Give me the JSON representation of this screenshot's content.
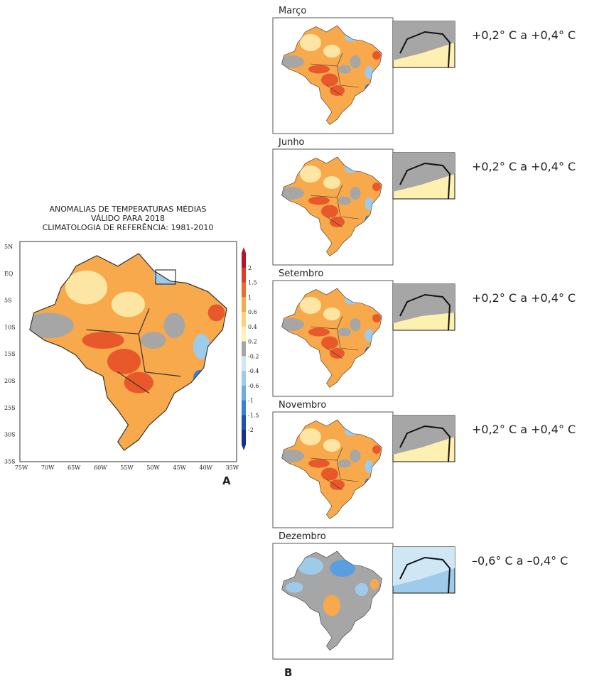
{
  "panel_a": {
    "title": [
      "ANOMALIAS DE TEMPERATURAS MÉDIAS",
      "VÁLIDO PARA 2018",
      "CLIMATOLOGIA DE REFERÊNCIA: 1981-2010"
    ],
    "y_labels": [
      "5N",
      "EQ",
      "5S",
      "10S",
      "15S",
      "20S",
      "25S",
      "30S",
      "35S"
    ],
    "x_labels": [
      "75W",
      "70W",
      "65W",
      "60W",
      "55W",
      "50W",
      "45W",
      "40W",
      "35W"
    ],
    "colorbar_labels": [
      "2",
      "1.5",
      "1",
      "0.6",
      "0.4",
      "0.2",
      "-0.2",
      "-0.4",
      "-0.6",
      "-1",
      "-1.5",
      "-2"
    ],
    "label": "A"
  },
  "panel_b": {
    "months": [
      {
        "name": "Março",
        "range": "+0,2° C a +0,4° C"
      },
      {
        "name": "Junho",
        "range": "+0,2° C a +0,4° C"
      },
      {
        "name": "Setembro",
        "range": "+0,2° C a +0,4° C"
      },
      {
        "name": "Novembro",
        "range": "+0,2° C a +0,4° C"
      },
      {
        "name": "Dezembro",
        "range": "–0,6° C a –0,4° C"
      }
    ],
    "label": "B"
  }
}
